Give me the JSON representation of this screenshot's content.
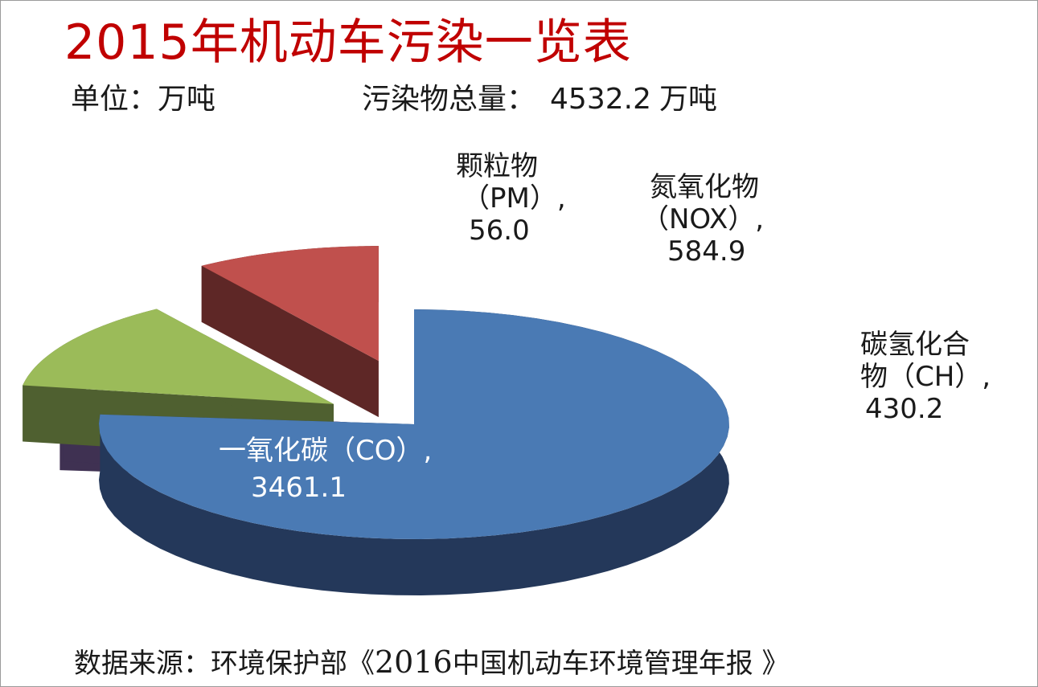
{
  "title": "2015年机动车污染一览表",
  "unit_label": "单位：万吨",
  "total_label": "污染物总量：",
  "total_value": "4532.2",
  "total_unit": "万吨",
  "source_prefix": "数据来源：环境保护部《",
  "source_year": "2016",
  "source_rest": "中国机动车环境管理年报 》",
  "chart_data": {
    "type": "pie",
    "style": "3d-exploded",
    "slices": [
      {
        "label": "一氧化碳（CO）,",
        "value": 3461.1,
        "color": "#4a7ab4",
        "side_color": "#24385a"
      },
      {
        "label": "颗粒物（PM）,",
        "value": 56.0,
        "color": "#8064a2",
        "side_color": "#3f3152"
      },
      {
        "label": "氮氧化物（NOX）,",
        "value": 584.9,
        "color": "#9bbb59",
        "side_color": "#4f6030"
      },
      {
        "label": "碳氢化合物（CH）,",
        "value": 430.2,
        "color": "#c0504d",
        "side_color": "#5e2726"
      }
    ],
    "value_labels": [
      "3461.1",
      "56.0",
      "584.9",
      "430.2"
    ],
    "label_lines": [
      [
        "一氧化碳（CO）,",
        "3461.1"
      ],
      [
        "颗粒物",
        "（PM）,",
        "56.0"
      ],
      [
        "氮氧化物",
        "（NOX）,",
        "584.9"
      ],
      [
        "碳氢化合",
        "物（CH）,",
        "430.2"
      ]
    ]
  }
}
